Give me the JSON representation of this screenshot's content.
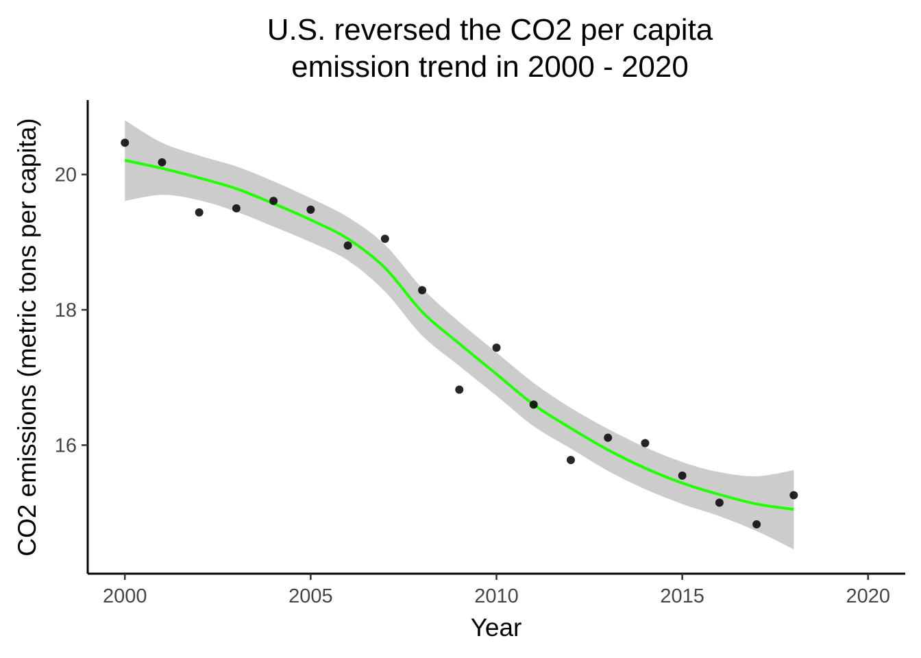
{
  "chart_data": {
    "type": "scatter",
    "title_line1": "U.S. reversed the CO2 per capita",
    "title_line2": "emission trend in 2000 - 2020",
    "xlabel": "Year",
    "ylabel": "CO2 emissions (metric tons per capita)",
    "xlim": [
      1999,
      2021
    ],
    "ylim": [
      14.1,
      21.1
    ],
    "xticks": [
      2000,
      2005,
      2010,
      2015,
      2020
    ],
    "yticks": [
      16,
      18,
      20
    ],
    "grid": false,
    "colors": {
      "points": "#000000",
      "smooth": "#22ff00",
      "band": "#cccccc"
    },
    "points": [
      {
        "x": 2000,
        "y": 20.47
      },
      {
        "x": 2001,
        "y": 20.18
      },
      {
        "x": 2002,
        "y": 19.44
      },
      {
        "x": 2003,
        "y": 19.5
      },
      {
        "x": 2004,
        "y": 19.61
      },
      {
        "x": 2005,
        "y": 19.48
      },
      {
        "x": 2006,
        "y": 18.95
      },
      {
        "x": 2007,
        "y": 19.05
      },
      {
        "x": 2008,
        "y": 18.29
      },
      {
        "x": 2009,
        "y": 16.82
      },
      {
        "x": 2010,
        "y": 17.44
      },
      {
        "x": 2011,
        "y": 16.6
      },
      {
        "x": 2012,
        "y": 15.78
      },
      {
        "x": 2013,
        "y": 16.11
      },
      {
        "x": 2014,
        "y": 16.03
      },
      {
        "x": 2015,
        "y": 15.55
      },
      {
        "x": 2016,
        "y": 15.15
      },
      {
        "x": 2017,
        "y": 14.83
      },
      {
        "x": 2018,
        "y": 15.26
      }
    ],
    "smooth": [
      {
        "x": 2000,
        "y": 20.21,
        "lo": 19.61,
        "hi": 20.8
      },
      {
        "x": 2001,
        "y": 20.09,
        "lo": 19.7,
        "hi": 20.47
      },
      {
        "x": 2002,
        "y": 19.95,
        "lo": 19.62,
        "hi": 20.28
      },
      {
        "x": 2003,
        "y": 19.79,
        "lo": 19.45,
        "hi": 20.12
      },
      {
        "x": 2004,
        "y": 19.57,
        "lo": 19.23,
        "hi": 19.9
      },
      {
        "x": 2005,
        "y": 19.33,
        "lo": 19.0,
        "hi": 19.65
      },
      {
        "x": 2006,
        "y": 19.05,
        "lo": 18.73,
        "hi": 19.37
      },
      {
        "x": 2007,
        "y": 18.62,
        "lo": 18.27,
        "hi": 18.96
      },
      {
        "x": 2008,
        "y": 17.97,
        "lo": 17.62,
        "hi": 18.32
      },
      {
        "x": 2009,
        "y": 17.5,
        "lo": 17.17,
        "hi": 17.82
      },
      {
        "x": 2010,
        "y": 17.05,
        "lo": 16.73,
        "hi": 17.37
      },
      {
        "x": 2011,
        "y": 16.6,
        "lo": 16.28,
        "hi": 16.92
      },
      {
        "x": 2012,
        "y": 16.25,
        "lo": 15.95,
        "hi": 16.55
      },
      {
        "x": 2013,
        "y": 15.93,
        "lo": 15.62,
        "hi": 16.24
      },
      {
        "x": 2014,
        "y": 15.66,
        "lo": 15.35,
        "hi": 15.97
      },
      {
        "x": 2015,
        "y": 15.44,
        "lo": 15.13,
        "hi": 15.75
      },
      {
        "x": 2016,
        "y": 15.27,
        "lo": 14.95,
        "hi": 15.6
      },
      {
        "x": 2017,
        "y": 15.13,
        "lo": 14.73,
        "hi": 15.54
      },
      {
        "x": 2018,
        "y": 15.05,
        "lo": 14.46,
        "hi": 15.63
      }
    ]
  }
}
